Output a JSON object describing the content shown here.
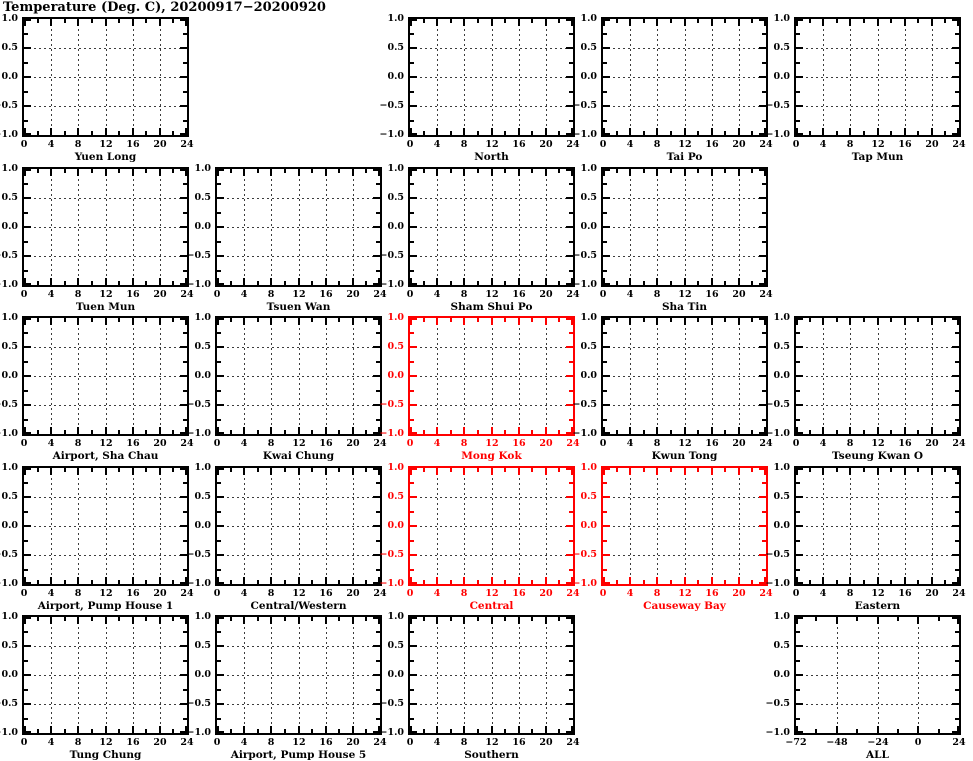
{
  "chart_data": {
    "type": "line",
    "title": "Temperature (Deg. C), 20200917−20200920",
    "note": "multi-panel grid; all panels are empty axes with no plotted series",
    "colors": {
      "normal": "#000000",
      "highlight": "#ff0000",
      "grid": "#3c3c3c",
      "background": "#ffffff"
    },
    "y_axis": {
      "range": [
        -1.0,
        1.0
      ],
      "major_ticks": [
        1.0,
        0.5,
        0.0,
        -0.5,
        -1.0
      ],
      "minor_ticks": [
        0.75,
        0.25,
        -0.25,
        -0.75
      ],
      "grid_ticks": [
        0.5,
        0.0,
        -0.5
      ],
      "tick_labels": [
        "1.0",
        "0.5",
        "0.0",
        "−0.5",
        "−1.0"
      ]
    },
    "x_axes": {
      "day": {
        "range": [
          0,
          24
        ],
        "major_ticks": [
          0,
          4,
          8,
          12,
          16,
          20,
          24
        ],
        "minor_ticks": [
          2,
          6,
          10,
          14,
          18,
          22
        ],
        "grid_ticks": [
          4,
          8,
          12,
          16,
          20
        ],
        "tick_labels": [
          "0",
          "4",
          "8",
          "12",
          "16",
          "20",
          "24"
        ]
      },
      "all": {
        "range": [
          -72,
          24
        ],
        "major_ticks": [
          -72,
          -48,
          -24,
          0,
          24
        ],
        "minor_ticks": [
          -60,
          -36,
          -12,
          12
        ],
        "grid_ticks": [
          -48,
          -24,
          0
        ],
        "tick_labels": [
          "−72",
          "−48",
          "−24",
          "0",
          "24"
        ]
      }
    },
    "panels": [
      {
        "row": 0,
        "col": 0,
        "title": "Yuen Long",
        "highlighted": false,
        "x_axis": "day"
      },
      {
        "row": 0,
        "col": 2,
        "title": "North",
        "highlighted": false,
        "x_axis": "day"
      },
      {
        "row": 0,
        "col": 3,
        "title": "Tai Po",
        "highlighted": false,
        "x_axis": "day"
      },
      {
        "row": 0,
        "col": 4,
        "title": "Tap Mun",
        "highlighted": false,
        "x_axis": "day"
      },
      {
        "row": 1,
        "col": 0,
        "title": "Tuen Mun",
        "highlighted": false,
        "x_axis": "day"
      },
      {
        "row": 1,
        "col": 1,
        "title": "Tsuen Wan",
        "highlighted": false,
        "x_axis": "day"
      },
      {
        "row": 1,
        "col": 2,
        "title": "Sham Shui Po",
        "highlighted": false,
        "x_axis": "day"
      },
      {
        "row": 1,
        "col": 3,
        "title": "Sha Tin",
        "highlighted": false,
        "x_axis": "day"
      },
      {
        "row": 2,
        "col": 0,
        "title": "Airport, Sha Chau",
        "highlighted": false,
        "x_axis": "day"
      },
      {
        "row": 2,
        "col": 1,
        "title": "Kwai Chung",
        "highlighted": false,
        "x_axis": "day"
      },
      {
        "row": 2,
        "col": 2,
        "title": "Mong Kok",
        "highlighted": true,
        "x_axis": "day"
      },
      {
        "row": 2,
        "col": 3,
        "title": "Kwun Tong",
        "highlighted": false,
        "x_axis": "day"
      },
      {
        "row": 2,
        "col": 4,
        "title": "Tseung Kwan O",
        "highlighted": false,
        "x_axis": "day"
      },
      {
        "row": 3,
        "col": 0,
        "title": "Airport, Pump House 1",
        "highlighted": false,
        "x_axis": "day"
      },
      {
        "row": 3,
        "col": 1,
        "title": "Central/Western",
        "highlighted": false,
        "x_axis": "day"
      },
      {
        "row": 3,
        "col": 2,
        "title": "Central",
        "highlighted": true,
        "x_axis": "day"
      },
      {
        "row": 3,
        "col": 3,
        "title": "Causeway Bay",
        "highlighted": true,
        "x_axis": "day"
      },
      {
        "row": 3,
        "col": 4,
        "title": "Eastern",
        "highlighted": false,
        "x_axis": "day"
      },
      {
        "row": 4,
        "col": 0,
        "title": "Tung Chung",
        "highlighted": false,
        "x_axis": "day"
      },
      {
        "row": 4,
        "col": 1,
        "title": "Airport, Pump House 5",
        "highlighted": false,
        "x_axis": "day"
      },
      {
        "row": 4,
        "col": 2,
        "title": "Southern",
        "highlighted": false,
        "x_axis": "day"
      },
      {
        "row": 4,
        "col": 4,
        "title": "ALL",
        "highlighted": false,
        "x_axis": "all"
      }
    ]
  }
}
